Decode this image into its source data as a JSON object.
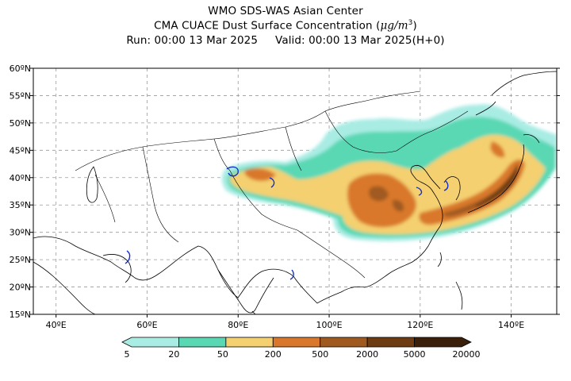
{
  "header": {
    "line1": "WMO SDS-WAS Asian Center",
    "line2_pre": "CMA CUACE Dust Surface Concentration (",
    "line2_unit_mu": "μ",
    "line2_unit_rest": "g/m",
    "line2_unit_exp": "3",
    "line2_post": ")",
    "run": "Run: 00:00 13 Mar 2025",
    "valid": "Valid: 00:00 13 Mar 2025(H+0)"
  },
  "map": {
    "lon_range": [
      35,
      150
    ],
    "lat_range": [
      15,
      60
    ],
    "lat_ticks": [
      {
        "value": 15,
        "label": "15ºN"
      },
      {
        "value": 20,
        "label": "20ºN"
      },
      {
        "value": 25,
        "label": "25ºN"
      },
      {
        "value": 30,
        "label": "30ºN"
      },
      {
        "value": 35,
        "label": "35ºN"
      },
      {
        "value": 40,
        "label": "40ºN"
      },
      {
        "value": 45,
        "label": "45ºN"
      },
      {
        "value": 50,
        "label": "50ºN"
      },
      {
        "value": 55,
        "label": "55ºN"
      },
      {
        "value": 60,
        "label": "60ºN"
      }
    ],
    "lon_ticks": [
      {
        "value": 40,
        "label": "40ºE"
      },
      {
        "value": 60,
        "label": "60ºE"
      },
      {
        "value": 80,
        "label": "80ºE"
      },
      {
        "value": 100,
        "label": "100ºE"
      },
      {
        "value": 120,
        "label": "120ºE"
      },
      {
        "value": 140,
        "label": "140ºE"
      }
    ],
    "grid": true
  },
  "colorbar": {
    "levels": [
      "5",
      "20",
      "50",
      "200",
      "500",
      "2000",
      "5000",
      "20000"
    ],
    "colors": [
      "#a9ece4",
      "#5ad8b4",
      "#f4d070",
      "#d9782c",
      "#a05a20",
      "#6e3c12",
      "#3a200a"
    ]
  }
}
